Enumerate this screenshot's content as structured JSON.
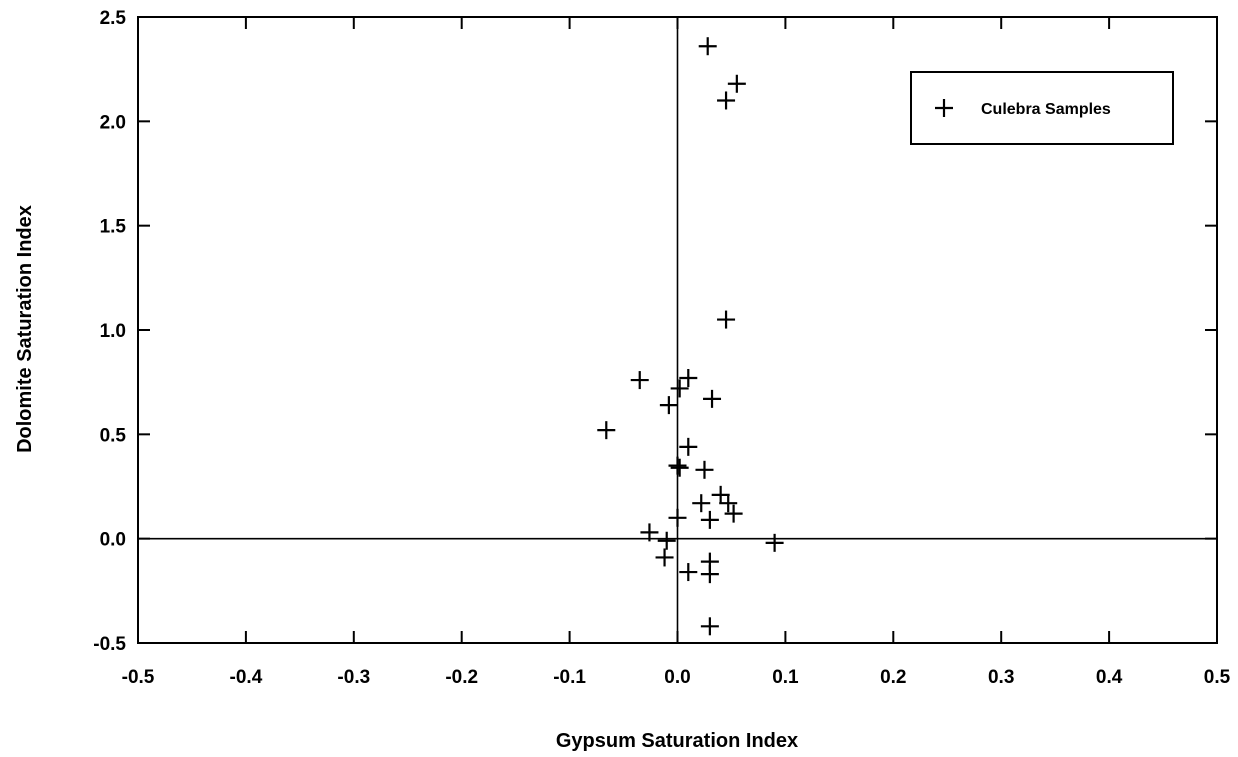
{
  "chart_data": {
    "type": "scatter",
    "title": "",
    "xlabel": "Gypsum Saturation Index",
    "ylabel": "Dolomite Saturation Index",
    "xlim": [
      -0.5,
      0.5
    ],
    "ylim": [
      -0.5,
      2.5
    ],
    "xticks": [
      -0.5,
      -0.4,
      -0.3,
      -0.2,
      -0.1,
      0.0,
      0.1,
      0.2,
      0.3,
      0.4,
      0.5
    ],
    "xtick_labels": [
      "-0.5",
      "-0.4",
      "-0.3",
      "-0.2",
      "-0.1",
      "0.0",
      "0.1",
      "0.2",
      "0.3",
      "0.4",
      "0.5"
    ],
    "yticks": [
      -0.5,
      0.0,
      0.5,
      1.0,
      1.5,
      2.0,
      2.5
    ],
    "ytick_labels": [
      "-0.5",
      "0.0",
      "0.5",
      "1.0",
      "1.5",
      "2.0",
      "2.5"
    ],
    "grid": false,
    "reference_lines": {
      "x": 0.0,
      "y": 0.0
    },
    "legend_position": "top-right",
    "marker": "plus",
    "color": "#000000",
    "series": [
      {
        "name": "Culebra Samples",
        "points": [
          [
            0.028,
            2.36
          ],
          [
            0.055,
            2.18
          ],
          [
            0.045,
            2.1
          ],
          [
            0.045,
            1.05
          ],
          [
            -0.035,
            0.76
          ],
          [
            0.01,
            0.77
          ],
          [
            0.002,
            0.72
          ],
          [
            -0.008,
            0.64
          ],
          [
            0.032,
            0.67
          ],
          [
            -0.066,
            0.52
          ],
          [
            0.01,
            0.44
          ],
          [
            0.0,
            0.35
          ],
          [
            0.002,
            0.34
          ],
          [
            0.025,
            0.33
          ],
          [
            0.04,
            0.21
          ],
          [
            0.022,
            0.17
          ],
          [
            0.047,
            0.17
          ],
          [
            0.052,
            0.12
          ],
          [
            0.03,
            0.09
          ],
          [
            0.0,
            0.1
          ],
          [
            -0.026,
            0.03
          ],
          [
            -0.01,
            -0.01
          ],
          [
            0.09,
            -0.02
          ],
          [
            -0.012,
            -0.09
          ],
          [
            0.03,
            -0.11
          ],
          [
            0.01,
            -0.16
          ],
          [
            0.03,
            -0.17
          ],
          [
            0.03,
            -0.42
          ]
        ]
      }
    ]
  }
}
